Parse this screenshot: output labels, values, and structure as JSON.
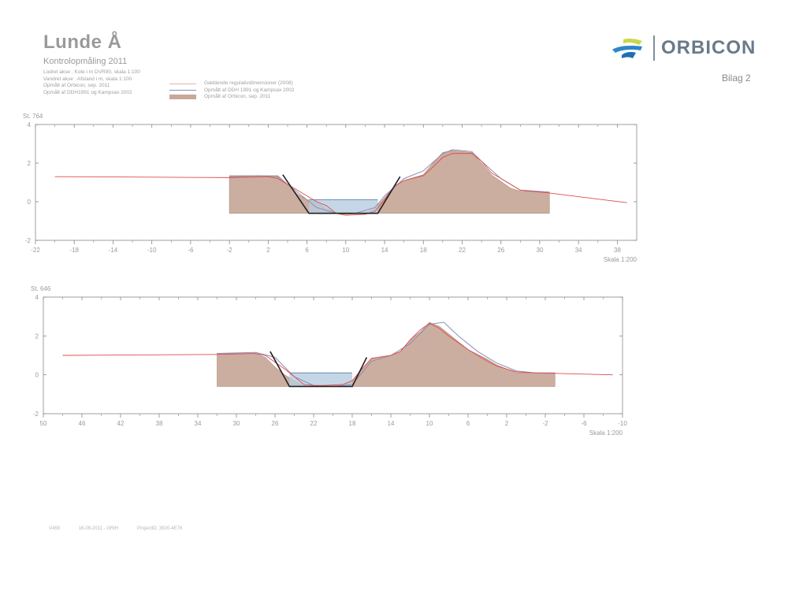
{
  "header": {
    "title": "Lunde Å",
    "subtitle": "Kontrolopmåling 2011",
    "info_lines": [
      "Lodret akse : Kote i m DVR90, skala 1:100",
      "Vandret akse : Afstand i m, skala 1:100",
      "Opmålt af Orbicon, sep. 2011",
      "Opmålt af DDH1991 og Kampsax 2002"
    ]
  },
  "legend": {
    "items": [
      {
        "label": "Gældende regulativdimensioner (2008)",
        "kind": "line",
        "color": "#e6b0b0"
      },
      {
        "label": "Opmålt af DDH 1991 og Kampsax 2002",
        "kind": "line",
        "color": "#8a90b8"
      },
      {
        "label": "Opmålt af Orbicon, sep. 2011",
        "kind": "fill",
        "color": "#c8a898"
      }
    ]
  },
  "logo": {
    "name": "ORBICON",
    "icon": "orbicon-logo-icon"
  },
  "bilag": "Bilag 2",
  "footer": {
    "code": "V459",
    "date": "16-09-2011 - GRIH",
    "project": "ProjectID: 3920-4E76"
  },
  "colors": {
    "ground": "#c9aa9b",
    "ground_edge": "#a88877",
    "water": "#b7cde0",
    "regulativ": "#e34a4a",
    "old_survey": "#8a90b8",
    "design_slope": "#222222",
    "frame": "#888888"
  },
  "chart_data": [
    {
      "type": "area",
      "station_label": "St. 764",
      "scale_label": "Skala 1:200",
      "x_reversed": false,
      "xlim": [
        -22,
        40
      ],
      "ylim": [
        -2,
        4
      ],
      "x_ticks": [
        -22,
        -18,
        -14,
        -10,
        -6,
        -2,
        2,
        6,
        10,
        14,
        18,
        22,
        26,
        30,
        34,
        38
      ],
      "y_ticks": [
        -2,
        0,
        2,
        4
      ],
      "ground_2011": {
        "x": [
          -2,
          1,
          3,
          4,
          5,
          6,
          7,
          8,
          9,
          10,
          12,
          13,
          14,
          15,
          16,
          18,
          19,
          20,
          21,
          23,
          24,
          25,
          27,
          28,
          31
        ],
        "y": [
          1.35,
          1.35,
          1.35,
          0.9,
          0.4,
          0.1,
          0.0,
          -0.35,
          -0.6,
          -0.65,
          -0.6,
          -0.35,
          0.2,
          0.8,
          1.1,
          1.4,
          2.0,
          2.55,
          2.65,
          2.55,
          2.0,
          1.4,
          0.7,
          0.55,
          0.5
        ],
        "base": -0.6
      },
      "water": {
        "x0": 6.2,
        "x1": 13.3,
        "surface": 0.1,
        "bottom": -0.6
      },
      "regulativ_line": {
        "x": [
          -20,
          -2,
          2,
          3,
          5,
          7,
          8,
          9,
          10,
          12,
          13,
          14,
          15,
          16,
          18,
          19,
          20,
          21,
          23,
          24,
          25,
          27,
          28,
          31,
          39
        ],
        "y": [
          1.3,
          1.25,
          1.3,
          1.2,
          0.6,
          0.0,
          -0.2,
          -0.6,
          -0.7,
          -0.65,
          -0.5,
          0.1,
          0.8,
          1.1,
          1.35,
          1.8,
          2.3,
          2.5,
          2.5,
          2.1,
          1.5,
          0.9,
          0.6,
          0.45,
          -0.05
        ]
      },
      "old_survey_line": {
        "x": [
          -2,
          1,
          3,
          5,
          7,
          9,
          11,
          13,
          14,
          16,
          18,
          20,
          21,
          23,
          24,
          26,
          28,
          31
        ],
        "y": [
          1.3,
          1.35,
          1.3,
          0.5,
          -0.3,
          -0.6,
          -0.6,
          -0.3,
          0.3,
          1.2,
          1.6,
          2.5,
          2.7,
          2.6,
          2.1,
          1.2,
          0.6,
          0.5
        ]
      },
      "design_profile": {
        "x": [
          3.5,
          6.2,
          13.3,
          15.6
        ],
        "y": [
          1.4,
          -0.6,
          -0.6,
          1.3
        ]
      }
    },
    {
      "type": "area",
      "station_label": "St. 646",
      "scale_label": "Skala 1:200",
      "x_reversed": true,
      "xlim": [
        50,
        -10
      ],
      "ylim": [
        -2,
        4
      ],
      "x_ticks": [
        50,
        46,
        42,
        38,
        34,
        30,
        26,
        22,
        18,
        14,
        10,
        6,
        2,
        -2,
        -6,
        -10
      ],
      "y_ticks": [
        -2,
        0,
        2,
        4
      ],
      "ground_2011": {
        "x": [
          32,
          29,
          28,
          27,
          26,
          25,
          24,
          23,
          22,
          21,
          19,
          18,
          17,
          16,
          14,
          13,
          12,
          11,
          10,
          9,
          8,
          6,
          4,
          3,
          1,
          -1,
          -3
        ],
        "y": [
          1.1,
          1.1,
          1.1,
          0.9,
          0.4,
          0.0,
          -0.3,
          -0.55,
          -0.6,
          -0.6,
          -0.55,
          -0.3,
          0.3,
          0.85,
          1.0,
          1.2,
          1.8,
          2.2,
          2.7,
          2.5,
          2.1,
          1.3,
          0.8,
          0.5,
          0.1,
          0.1,
          0.1
        ],
        "base": -0.6
      },
      "water": {
        "x0": 24.5,
        "x1": 18.0,
        "surface": 0.1,
        "bottom": -0.6
      },
      "regulativ_line": {
        "x": [
          48,
          32,
          28,
          27,
          25,
          23,
          22,
          21,
          19,
          18,
          17,
          16,
          14,
          13,
          12,
          11,
          10,
          9,
          8,
          6,
          4,
          3,
          1,
          -1,
          -9
        ],
        "y": [
          1.0,
          1.05,
          1.1,
          1.0,
          0.3,
          -0.5,
          -0.55,
          -0.55,
          -0.5,
          -0.3,
          0.3,
          0.85,
          1.0,
          1.2,
          1.8,
          2.3,
          2.65,
          2.4,
          2.0,
          1.3,
          0.7,
          0.45,
          0.15,
          0.1,
          0.0
        ]
      },
      "old_survey_line": {
        "x": [
          32,
          28,
          26,
          24,
          22,
          20,
          18,
          16,
          14,
          12,
          10,
          8.5,
          7,
          5,
          3,
          1,
          -1,
          -3
        ],
        "y": [
          1.1,
          1.15,
          0.9,
          -0.1,
          -0.55,
          -0.6,
          -0.5,
          0.7,
          1.0,
          1.6,
          2.6,
          2.7,
          2.0,
          1.2,
          0.6,
          0.2,
          0.1,
          0.1
        ]
      },
      "design_profile": {
        "x": [
          26.5,
          24.5,
          18.0,
          16.5
        ],
        "y": [
          1.2,
          -0.6,
          -0.6,
          0.9
        ]
      }
    }
  ]
}
